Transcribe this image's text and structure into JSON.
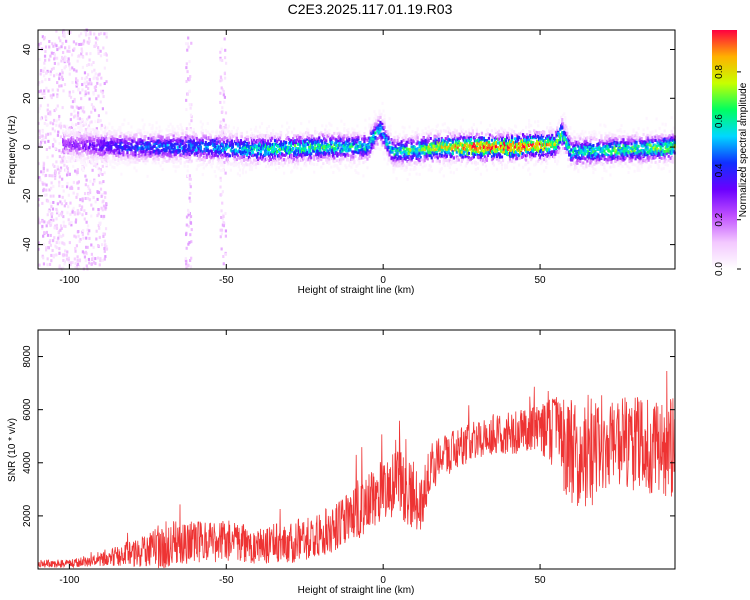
{
  "title": "C2E3.2025.117.01.19.R03",
  "chart_data": [
    {
      "type": "heatmap",
      "xlabel": "Height of straight line (km)",
      "ylabel": "Frequency (Hz)",
      "xlim": [
        -110,
        93
      ],
      "ylim": [
        -50,
        48
      ],
      "xticks": [
        -100,
        -50,
        0,
        50
      ],
      "yticks": [
        -40,
        -20,
        0,
        20,
        40
      ],
      "colorbar": {
        "label": "Normalized spectral amplitude",
        "range": [
          0,
          0.97
        ],
        "ticks": [
          0.0,
          0.2,
          0.4,
          0.6,
          0.8
        ],
        "tick_labels": [
          "0.0",
          "0.2",
          "0.4",
          "0.6",
          "0.8"
        ],
        "colormap": [
          "#ffffff",
          "#f3c8ff",
          "#c050ff",
          "#6a00ff",
          "#1030ff",
          "#00d8ff",
          "#00ff60",
          "#c8ff00",
          "#ffb000",
          "#ff0040"
        ]
      },
      "ridge": {
        "center_freq_hz": [
          [
            -100,
            1
          ],
          [
            -80,
            0
          ],
          [
            -60,
            0
          ],
          [
            -40,
            -1
          ],
          [
            -20,
            0
          ],
          [
            -5,
            0
          ],
          [
            -1,
            8
          ],
          [
            3,
            -2
          ],
          [
            20,
            0
          ],
          [
            40,
            0
          ],
          [
            55,
            1
          ],
          [
            57,
            6
          ],
          [
            60,
            -2
          ],
          [
            93,
            0
          ]
        ],
        "peak_amplitude": [
          [
            -100,
            0.25
          ],
          [
            -80,
            0.45
          ],
          [
            -60,
            0.5
          ],
          [
            -40,
            0.6
          ],
          [
            -20,
            0.65
          ],
          [
            0,
            0.55
          ],
          [
            20,
            0.8
          ],
          [
            30,
            0.95
          ],
          [
            50,
            0.9
          ],
          [
            60,
            0.6
          ],
          [
            93,
            0.7
          ]
        ]
      },
      "noise_bands_km": [
        [
          -110,
          -88
        ],
        [
          -63,
          -61
        ],
        [
          -52,
          -50
        ]
      ]
    },
    {
      "type": "line",
      "xlabel": "Height of straight line (km)",
      "ylabel": "SNR (10 * v/v)",
      "xlim": [
        -110,
        93
      ],
      "ylim": [
        0,
        9000
      ],
      "xticks": [
        -100,
        -50,
        0,
        50
      ],
      "yticks": [
        2000,
        4000,
        6000,
        8000
      ],
      "color": "#ee3333",
      "envelope": {
        "x": [
          -110,
          -100,
          -90,
          -80,
          -70,
          -60,
          -50,
          -40,
          -30,
          -20,
          -10,
          0,
          5,
          10,
          12,
          15,
          20,
          30,
          40,
          50,
          55,
          60,
          65,
          70,
          80,
          93
        ],
        "mean": [
          200,
          200,
          350,
          600,
          900,
          1000,
          1050,
          900,
          1000,
          1300,
          1900,
          3000,
          3300,
          2700,
          2300,
          3800,
          4300,
          4900,
          5100,
          5300,
          4900,
          4500,
          4200,
          4800,
          4700,
          4600
        ],
        "spread": [
          150,
          150,
          250,
          500,
          900,
          800,
          800,
          700,
          800,
          900,
          1000,
          1200,
          1300,
          1300,
          1000,
          900,
          800,
          700,
          800,
          900,
          1600,
          2000,
          2200,
          1800,
          1800,
          1900
        ]
      }
    }
  ]
}
